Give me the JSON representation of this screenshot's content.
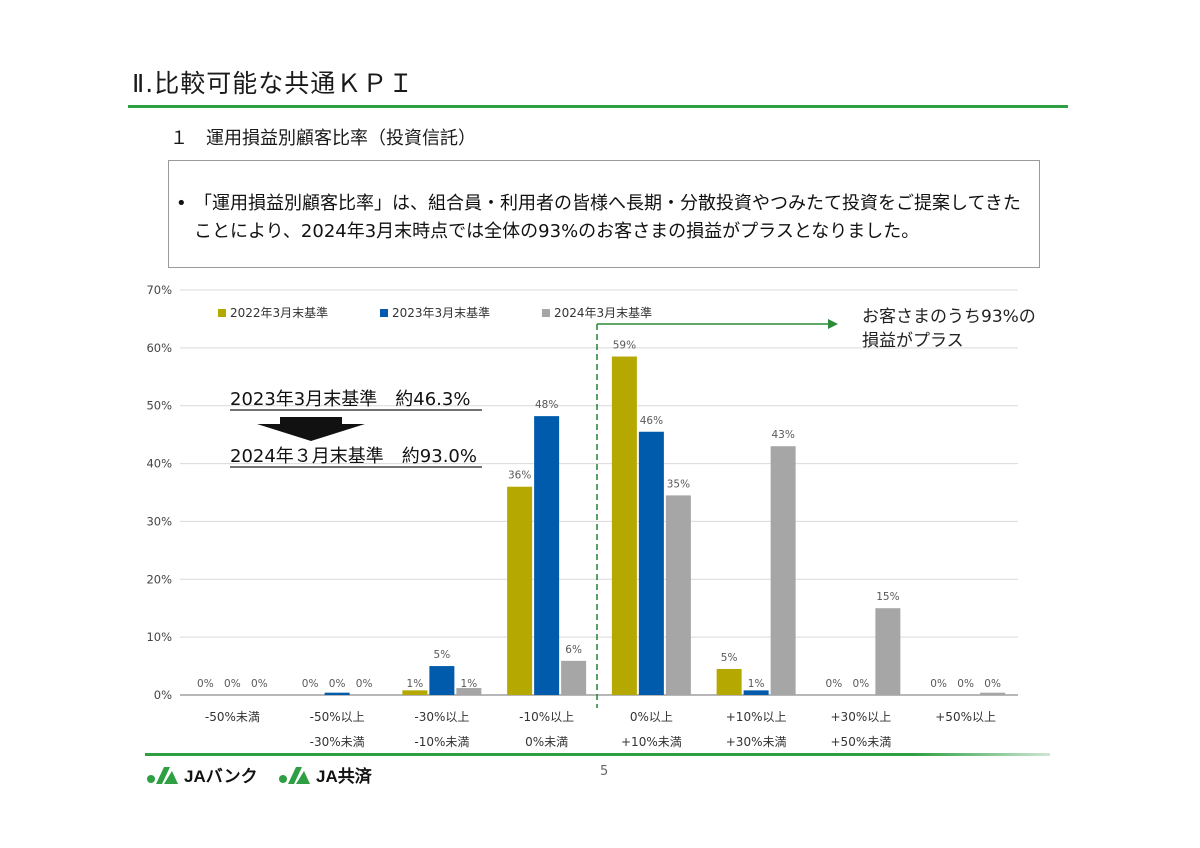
{
  "page": {
    "title": "Ⅱ.比較可能な共通ＫＰＩ",
    "subtitle": "１　運用損益別顧客比率（投資信託）",
    "callout_bullet": "•",
    "callout_text": "「運用損益別顧客比率」は、組合員・利用者の皆様へ長期・分散投資やつみたて投資をご提案してきたことにより、2024年3月末時点では全体の93%のお客さまの損益がプラスとなりました。",
    "page_number": "5",
    "logo1_text": "JAバンク",
    "logo2_text": "JA共済",
    "brand_color": "#2ea043"
  },
  "chart_data": {
    "type": "bar",
    "categories": [
      [
        "-50%未満"
      ],
      [
        "-50%以上",
        "-30%未満"
      ],
      [
        "-30%以上",
        "-10%未満"
      ],
      [
        "-10%以上",
        "0%未満"
      ],
      [
        "0%以上",
        "+10%未満"
      ],
      [
        "+10%以上",
        "+30%未満"
      ],
      [
        "+30%以上",
        "+50%未満"
      ],
      [
        "+50%以上"
      ]
    ],
    "series": [
      {
        "name": "2022年3月末基準",
        "color": "#b5a800",
        "values": [
          0,
          0,
          0.8,
          36,
          58.5,
          4.5,
          0,
          0
        ],
        "labels": [
          "0%",
          "0%",
          "1%",
          "36%",
          "59%",
          "5%",
          "0%",
          "0%"
        ]
      },
      {
        "name": "2023年3月末基準",
        "color": "#005bac",
        "values": [
          0,
          0.4,
          5,
          48.2,
          45.5,
          0.8,
          0,
          0
        ],
        "labels": [
          "0%",
          "0%",
          "5%",
          "48%",
          "46%",
          "1%",
          "0%",
          "0%"
        ]
      },
      {
        "name": "2024年3月末基準",
        "color": "#a6a6a6",
        "values": [
          0,
          0,
          1.2,
          5.9,
          34.5,
          43,
          15,
          0.4
        ],
        "labels": [
          "0%",
          "0%",
          "1%",
          "6%",
          "35%",
          "43%",
          "15%",
          "0%"
        ]
      }
    ],
    "ylim": [
      0,
      70
    ],
    "yticks": [
      "0%",
      "10%",
      "20%",
      "30%",
      "40%",
      "50%",
      "60%",
      "70%"
    ],
    "grid": true,
    "legend_position": "top-left",
    "annotation_plus": [
      "お客さまのうち93%の",
      "損益がプラス"
    ],
    "annotation_compare": {
      "line1": "2023年3月末基準　約46.3%",
      "line2": "2024年３月末基準　約93.0%"
    }
  }
}
